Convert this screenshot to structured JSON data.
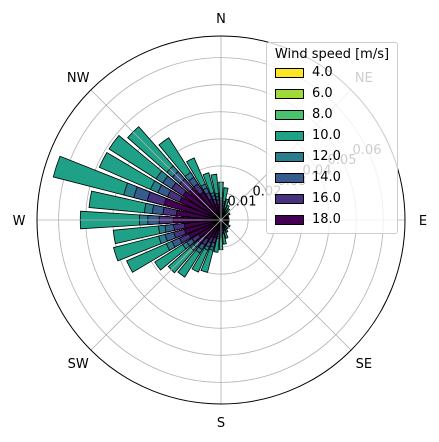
{
  "chart_data": {
    "type": "windrose",
    "direction_labels": [
      "N",
      "NE",
      "E",
      "SE",
      "S",
      "SW",
      "W",
      "NW"
    ],
    "radial_ticks": [
      0.01,
      0.02,
      0.03,
      0.04,
      0.05,
      0.06
    ],
    "radial_tick_labels": [
      "0.01",
      "0.02",
      "0.03",
      "0.04",
      "0.05",
      "0.06"
    ],
    "legend": {
      "title": "Wind speed [m/s]",
      "placement": "upper-right",
      "items": [
        {
          "label": "4.0",
          "color": "#fde725"
        },
        {
          "label": "6.0",
          "color": "#a0da39"
        },
        {
          "label": "8.0",
          "color": "#4ac16d"
        },
        {
          "label": "10.0",
          "color": "#1fa187"
        },
        {
          "label": "12.0",
          "color": "#277f8e"
        },
        {
          "label": "14.0",
          "color": "#365c8d"
        },
        {
          "label": "16.0",
          "color": "#46327e"
        },
        {
          "label": "18.0",
          "color": "#440154"
        }
      ]
    },
    "rmax": 0.068,
    "bar_layers": [
      {
        "color": "#440154",
        "frac": 0.34
      },
      {
        "color": "#46327e",
        "frac": 0.44
      },
      {
        "color": "#365c8d",
        "frac": 0.52
      },
      {
        "color": "#277f8e",
        "frac": 0.58
      },
      {
        "color": "#1fa187",
        "frac": 1.0
      }
    ],
    "bars": [
      {
        "deg": 0,
        "value": 0.014
      },
      {
        "deg": 9,
        "value": 0.012
      },
      {
        "deg": 18,
        "value": 0.008
      },
      {
        "deg": 27,
        "value": 0.006
      },
      {
        "deg": 36,
        "value": 0.005
      },
      {
        "deg": 45,
        "value": 0.004
      },
      {
        "deg": 54,
        "value": 0.004
      },
      {
        "deg": 63,
        "value": 0.003
      },
      {
        "deg": 72,
        "value": 0.003
      },
      {
        "deg": 81,
        "value": 0.003
      },
      {
        "deg": 90,
        "value": 0.003
      },
      {
        "deg": 99,
        "value": 0.003
      },
      {
        "deg": 108,
        "value": 0.003
      },
      {
        "deg": 117,
        "value": 0.003
      },
      {
        "deg": 126,
        "value": 0.004
      },
      {
        "deg": 135,
        "value": 0.004
      },
      {
        "deg": 144,
        "value": 0.004
      },
      {
        "deg": 153,
        "value": 0.005
      },
      {
        "deg": 162,
        "value": 0.007
      },
      {
        "deg": 171,
        "value": 0.009
      },
      {
        "deg": 180,
        "value": 0.011
      },
      {
        "deg": 189,
        "value": 0.012
      },
      {
        "deg": 198,
        "value": 0.02
      },
      {
        "deg": 207,
        "value": 0.021
      },
      {
        "deg": 216,
        "value": 0.025
      },
      {
        "deg": 225,
        "value": 0.026
      },
      {
        "deg": 234,
        "value": 0.029
      },
      {
        "deg": 243,
        "value": 0.038
      },
      {
        "deg": 252,
        "value": 0.041
      },
      {
        "deg": 261,
        "value": 0.04
      },
      {
        "deg": 270,
        "value": 0.052
      },
      {
        "deg": 279,
        "value": 0.049
      },
      {
        "deg": 288,
        "value": 0.064
      },
      {
        "deg": 297,
        "value": 0.049
      },
      {
        "deg": 306,
        "value": 0.049
      },
      {
        "deg": 315,
        "value": 0.046
      },
      {
        "deg": 324,
        "value": 0.036
      },
      {
        "deg": 333,
        "value": 0.025
      },
      {
        "deg": 342,
        "value": 0.018
      },
      {
        "deg": 351,
        "value": 0.017
      }
    ]
  }
}
